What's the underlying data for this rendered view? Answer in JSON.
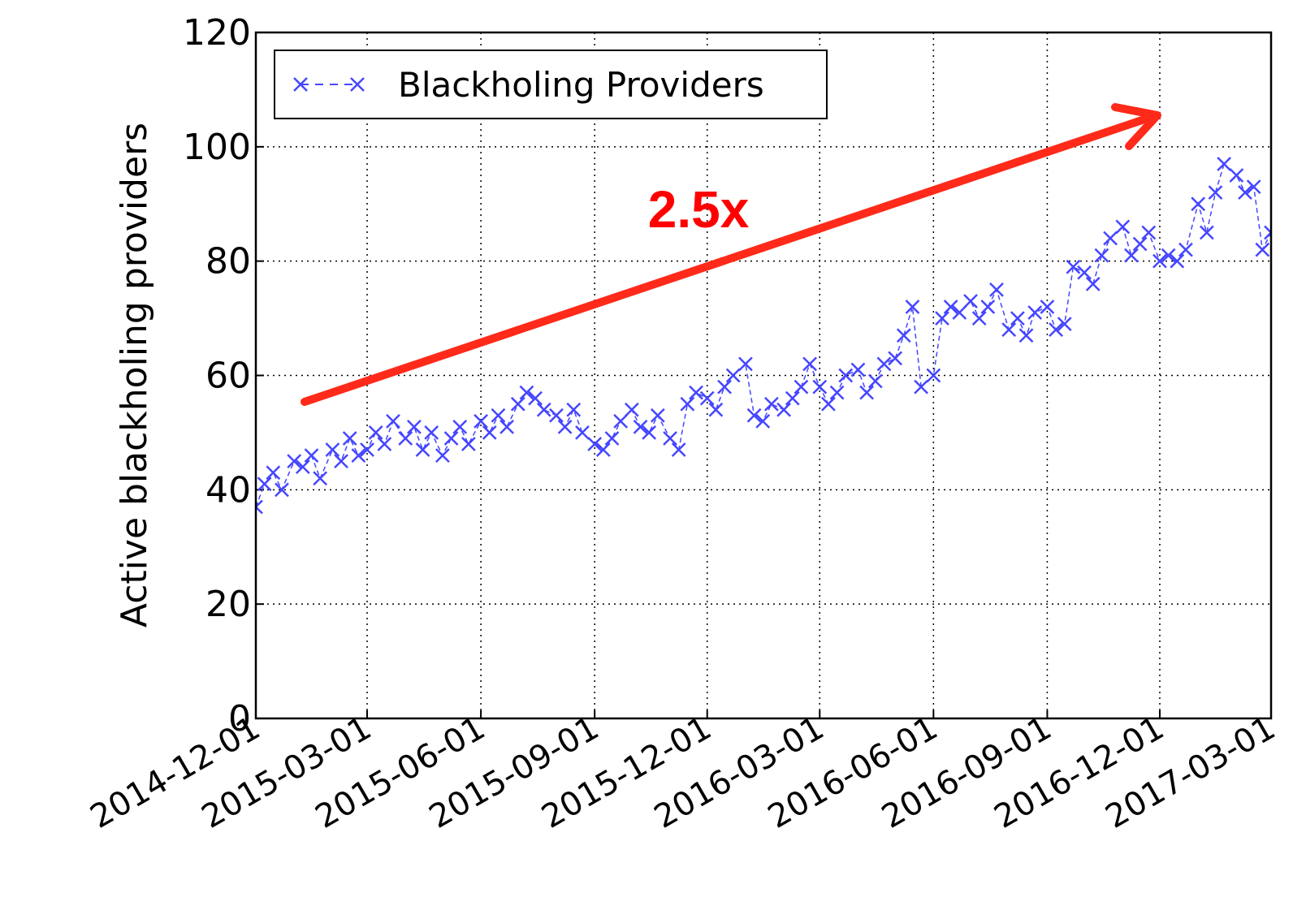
{
  "chart_data": {
    "type": "line",
    "ylabel": "Active blackholing providers",
    "annotation": "2.5x",
    "legend": "upper left",
    "grid": true,
    "ylim": [
      0,
      120
    ],
    "yticks": [
      0,
      20,
      40,
      60,
      80,
      100,
      120
    ],
    "xlim": [
      "2014-12-01",
      "2017-03-01"
    ],
    "xticks": [
      "2014-12-01",
      "2015-03-01",
      "2015-06-01",
      "2015-09-01",
      "2015-12-01",
      "2016-03-01",
      "2016-06-01",
      "2016-09-01",
      "2016-12-01",
      "2017-03-01"
    ],
    "x": [
      "2014-12-01",
      "2014-12-08",
      "2014-12-15",
      "2014-12-22",
      "2015-01-01",
      "2015-01-08",
      "2015-01-15",
      "2015-01-22",
      "2015-02-01",
      "2015-02-08",
      "2015-02-15",
      "2015-02-22",
      "2015-03-01",
      "2015-03-08",
      "2015-03-15",
      "2015-03-22",
      "2015-04-01",
      "2015-04-08",
      "2015-04-15",
      "2015-04-22",
      "2015-05-01",
      "2015-05-08",
      "2015-05-15",
      "2015-05-22",
      "2015-06-01",
      "2015-06-08",
      "2015-06-15",
      "2015-06-22",
      "2015-07-01",
      "2015-07-08",
      "2015-07-15",
      "2015-07-22",
      "2015-08-01",
      "2015-08-08",
      "2015-08-15",
      "2015-08-22",
      "2015-09-01",
      "2015-09-08",
      "2015-09-15",
      "2015-09-22",
      "2015-10-01",
      "2015-10-08",
      "2015-10-15",
      "2015-10-22",
      "2015-11-01",
      "2015-11-08",
      "2015-11-15",
      "2015-11-22",
      "2015-12-01",
      "2015-12-08",
      "2015-12-15",
      "2015-12-22",
      "2016-01-01",
      "2016-01-08",
      "2016-01-15",
      "2016-01-22",
      "2016-02-01",
      "2016-02-08",
      "2016-02-15",
      "2016-02-22",
      "2016-03-01",
      "2016-03-08",
      "2016-03-15",
      "2016-03-22",
      "2016-04-01",
      "2016-04-08",
      "2016-04-15",
      "2016-04-22",
      "2016-05-01",
      "2016-05-08",
      "2016-05-15",
      "2016-05-22",
      "2016-06-01",
      "2016-06-08",
      "2016-06-15",
      "2016-06-22",
      "2016-07-01",
      "2016-07-08",
      "2016-07-15",
      "2016-07-22",
      "2016-08-01",
      "2016-08-08",
      "2016-08-15",
      "2016-08-22",
      "2016-09-01",
      "2016-09-08",
      "2016-09-15",
      "2016-09-22",
      "2016-10-01",
      "2016-10-08",
      "2016-10-15",
      "2016-10-22",
      "2016-11-01",
      "2016-11-08",
      "2016-11-15",
      "2016-11-22",
      "2016-12-01",
      "2016-12-08",
      "2016-12-15",
      "2016-12-22",
      "2017-01-01",
      "2017-01-08",
      "2017-01-15",
      "2017-01-22",
      "2017-02-01",
      "2017-02-08",
      "2017-02-15",
      "2017-02-22",
      "2017-03-01"
    ],
    "series": [
      {
        "name": "Blackholing Providers",
        "color": "#4646ff",
        "values": [
          37,
          41,
          43,
          40,
          45,
          44,
          46,
          42,
          47,
          45,
          49,
          46,
          47,
          50,
          48,
          52,
          49,
          51,
          47,
          50,
          46,
          49,
          51,
          48,
          52,
          50,
          53,
          51,
          55,
          57,
          56,
          54,
          53,
          51,
          54,
          50,
          48,
          47,
          49,
          52,
          54,
          51,
          50,
          53,
          49,
          47,
          55,
          57,
          56,
          54,
          58,
          60,
          62,
          53,
          52,
          55,
          54,
          56,
          58,
          62,
          58,
          55,
          57,
          60,
          61,
          57,
          59,
          62,
          63,
          67,
          72,
          58,
          60,
          70,
          72,
          71,
          73,
          70,
          72,
          75,
          68,
          70,
          67,
          71,
          72,
          68,
          69,
          79,
          78,
          76,
          81,
          84,
          86,
          81,
          83,
          85,
          80,
          81,
          80,
          82,
          90,
          85,
          92,
          97,
          95,
          92,
          93,
          82,
          85
        ]
      }
    ]
  }
}
